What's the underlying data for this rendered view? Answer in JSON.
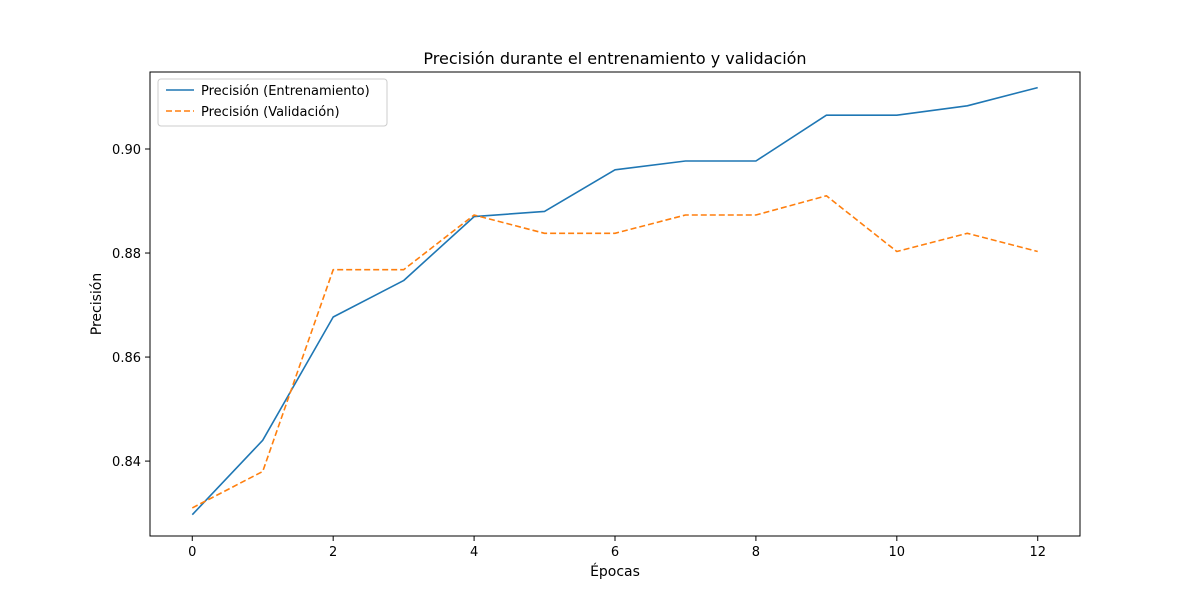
{
  "chart_data": {
    "type": "line",
    "title": "Precisión durante el entrenamiento y validación",
    "xlabel": "Épocas",
    "ylabel": "Precisión",
    "x": [
      0,
      1,
      2,
      3,
      4,
      5,
      6,
      7,
      8,
      9,
      10,
      11,
      12
    ],
    "xlim": [
      -0.6,
      12.6
    ],
    "ylim": [
      0.8256,
      0.9148
    ],
    "xticks": [
      0,
      2,
      4,
      6,
      8,
      10,
      12
    ],
    "xtick_labels": [
      "0",
      "2",
      "4",
      "6",
      "8",
      "10",
      "12"
    ],
    "yticks": [
      0.84,
      0.86,
      0.88,
      0.9
    ],
    "ytick_labels": [
      "0.84",
      "0.86",
      "0.88",
      "0.90"
    ],
    "grid": false,
    "legend_position": "upper-left",
    "series": [
      {
        "name": "Precisión (Entrenamiento)",
        "color": "#1f77b4",
        "style": "solid",
        "values": [
          0.8297,
          0.844,
          0.8677,
          0.8747,
          0.887,
          0.888,
          0.896,
          0.8977,
          0.8977,
          0.9065,
          0.9065,
          0.9083,
          0.9118
        ]
      },
      {
        "name": "Precisión (Validación)",
        "color": "#ff7f0e",
        "style": "dashed",
        "values": [
          0.831,
          0.838,
          0.8768,
          0.8768,
          0.8873,
          0.8838,
          0.8838,
          0.8873,
          0.8873,
          0.891,
          0.8803,
          0.8838,
          0.8803
        ]
      }
    ]
  }
}
